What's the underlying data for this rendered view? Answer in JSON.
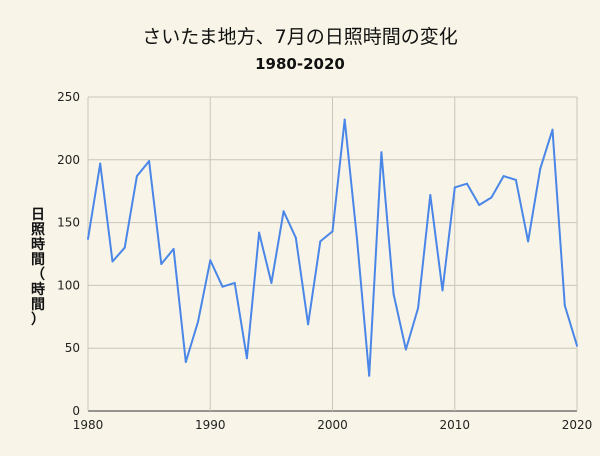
{
  "chart_data": {
    "type": "line",
    "title": "さいたま地方、7月の日照時間の変化",
    "subtitle": "1980-2020",
    "ylabel": "日照時間（時間）",
    "xlabel": "",
    "xlim": [
      1980,
      2020
    ],
    "ylim": [
      0,
      250
    ],
    "xticks": [
      "1980",
      "1990",
      "2000",
      "2010",
      "2020"
    ],
    "yticks": [
      "0",
      "50",
      "100",
      "150",
      "200",
      "250"
    ],
    "grid": true,
    "legend": "none",
    "series": [
      {
        "color": "#4a86e8",
        "x": [
          1980,
          1981,
          1982,
          1983,
          1984,
          1985,
          1986,
          1987,
          1988,
          1989,
          1990,
          1991,
          1992,
          1993,
          1994,
          1995,
          1996,
          1997,
          1998,
          1999,
          2000,
          2001,
          2002,
          2003,
          2004,
          2005,
          2006,
          2007,
          2008,
          2009,
          2010,
          2011,
          2012,
          2013,
          2014,
          2015,
          2016,
          2017,
          2018,
          2019,
          2020
        ],
        "values": [
          137,
          197,
          119,
          130,
          187,
          199,
          117,
          129,
          39,
          71,
          120,
          99,
          102,
          42,
          142,
          102,
          159,
          138,
          69,
          135,
          143,
          232,
          137,
          28,
          206,
          93,
          49,
          82,
          172,
          96,
          178,
          181,
          164,
          170,
          187,
          184,
          135,
          193,
          224,
          84,
          52
        ]
      }
    ]
  }
}
